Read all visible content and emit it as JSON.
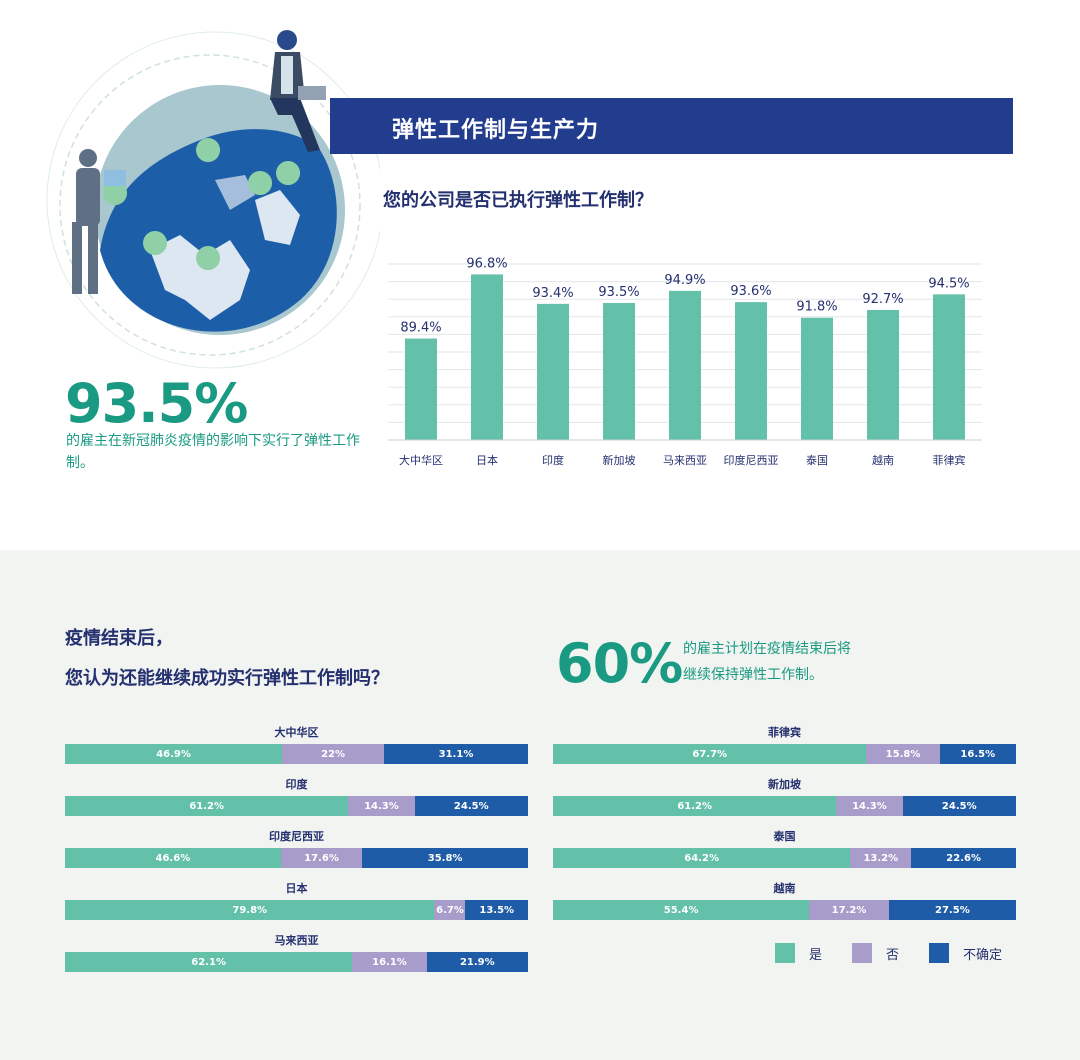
{
  "header": {
    "title": "弹性工作制与生产力"
  },
  "stat_primary": {
    "value": "93.5%",
    "description": "的雇主在新冠肺炎疫情的影响下实行了弹性工作制。"
  },
  "bar_section": {
    "question": "您的公司是否已执行弹性工作制？"
  },
  "stat_secondary": {
    "value": "60%",
    "description_line1": "的雇主计划在疫情结束后将",
    "description_line2": "继续保持弹性工作制。"
  },
  "stack_section": {
    "question_line1": "疫情结束后，",
    "question_line2": "您认为还能继续成功实行弹性工作制吗？"
  },
  "legend": {
    "yes": "是",
    "no": "否",
    "unsure": "不确定"
  },
  "colors": {
    "yes": "#63c1aa",
    "no": "#a89ccb",
    "unsure": "#1e5ca8",
    "banner": "#233d8e",
    "accent": "#1a9a82"
  },
  "chart_data": [
    {
      "type": "bar",
      "title": "您的公司是否已执行弹性工作制？",
      "categories": [
        "大中华区",
        "日本",
        "印度",
        "新加坡",
        "马来西亚",
        "印度尼西亚",
        "泰国",
        "越南",
        "菲律宾"
      ],
      "values": [
        89.4,
        96.8,
        93.4,
        93.5,
        94.9,
        93.6,
        91.8,
        92.7,
        94.5
      ],
      "value_labels": [
        "89.4%",
        "96.8%",
        "93.4%",
        "93.5%",
        "94.9%",
        "93.6%",
        "91.8%",
        "92.7%",
        "94.5%"
      ],
      "ylim": [
        0,
        100
      ],
      "grid": true
    },
    {
      "type": "bar",
      "stacked": true,
      "orientation": "horizontal",
      "title": "疫情结束后，您认为还能继续成功实行弹性工作制吗？",
      "legend_position": "bottom-right",
      "series_names": [
        "是",
        "否",
        "不确定"
      ],
      "groups": [
        {
          "column": "left",
          "items": [
            {
              "category": "大中华区",
              "values": [
                46.9,
                22,
                31.1
              ],
              "labels": [
                "46.9%",
                "22%",
                "31.1%"
              ]
            },
            {
              "category": "印度",
              "values": [
                61.2,
                14.3,
                24.5
              ],
              "labels": [
                "61.2%",
                "14.3%",
                "24.5%"
              ]
            },
            {
              "category": "印度尼西亚",
              "values": [
                46.6,
                17.6,
                35.8
              ],
              "labels": [
                "46.6%",
                "17.6%",
                "35.8%"
              ]
            },
            {
              "category": "日本",
              "values": [
                79.8,
                6.7,
                13.5
              ],
              "labels": [
                "79.8%",
                "6.7%",
                "13.5%"
              ]
            },
            {
              "category": "马来西亚",
              "values": [
                62.1,
                16.1,
                21.9
              ],
              "labels": [
                "62.1%",
                "16.1%",
                "21.9%"
              ]
            }
          ]
        },
        {
          "column": "right",
          "items": [
            {
              "category": "菲律宾",
              "values": [
                67.7,
                15.8,
                16.5
              ],
              "labels": [
                "67.7%",
                "15.8%",
                "16.5%"
              ]
            },
            {
              "category": "新加坡",
              "values": [
                61.2,
                14.3,
                24.5
              ],
              "labels": [
                "61.2%",
                "14.3%",
                "24.5%"
              ]
            },
            {
              "category": "泰国",
              "values": [
                64.2,
                13.2,
                22.6
              ],
              "labels": [
                "64.2%",
                "13.2%",
                "22.6%"
              ]
            },
            {
              "category": "越南",
              "values": [
                55.4,
                17.2,
                27.5
              ],
              "labels": [
                "55.4%",
                "17.2%",
                "27.5%"
              ]
            }
          ]
        }
      ]
    }
  ]
}
